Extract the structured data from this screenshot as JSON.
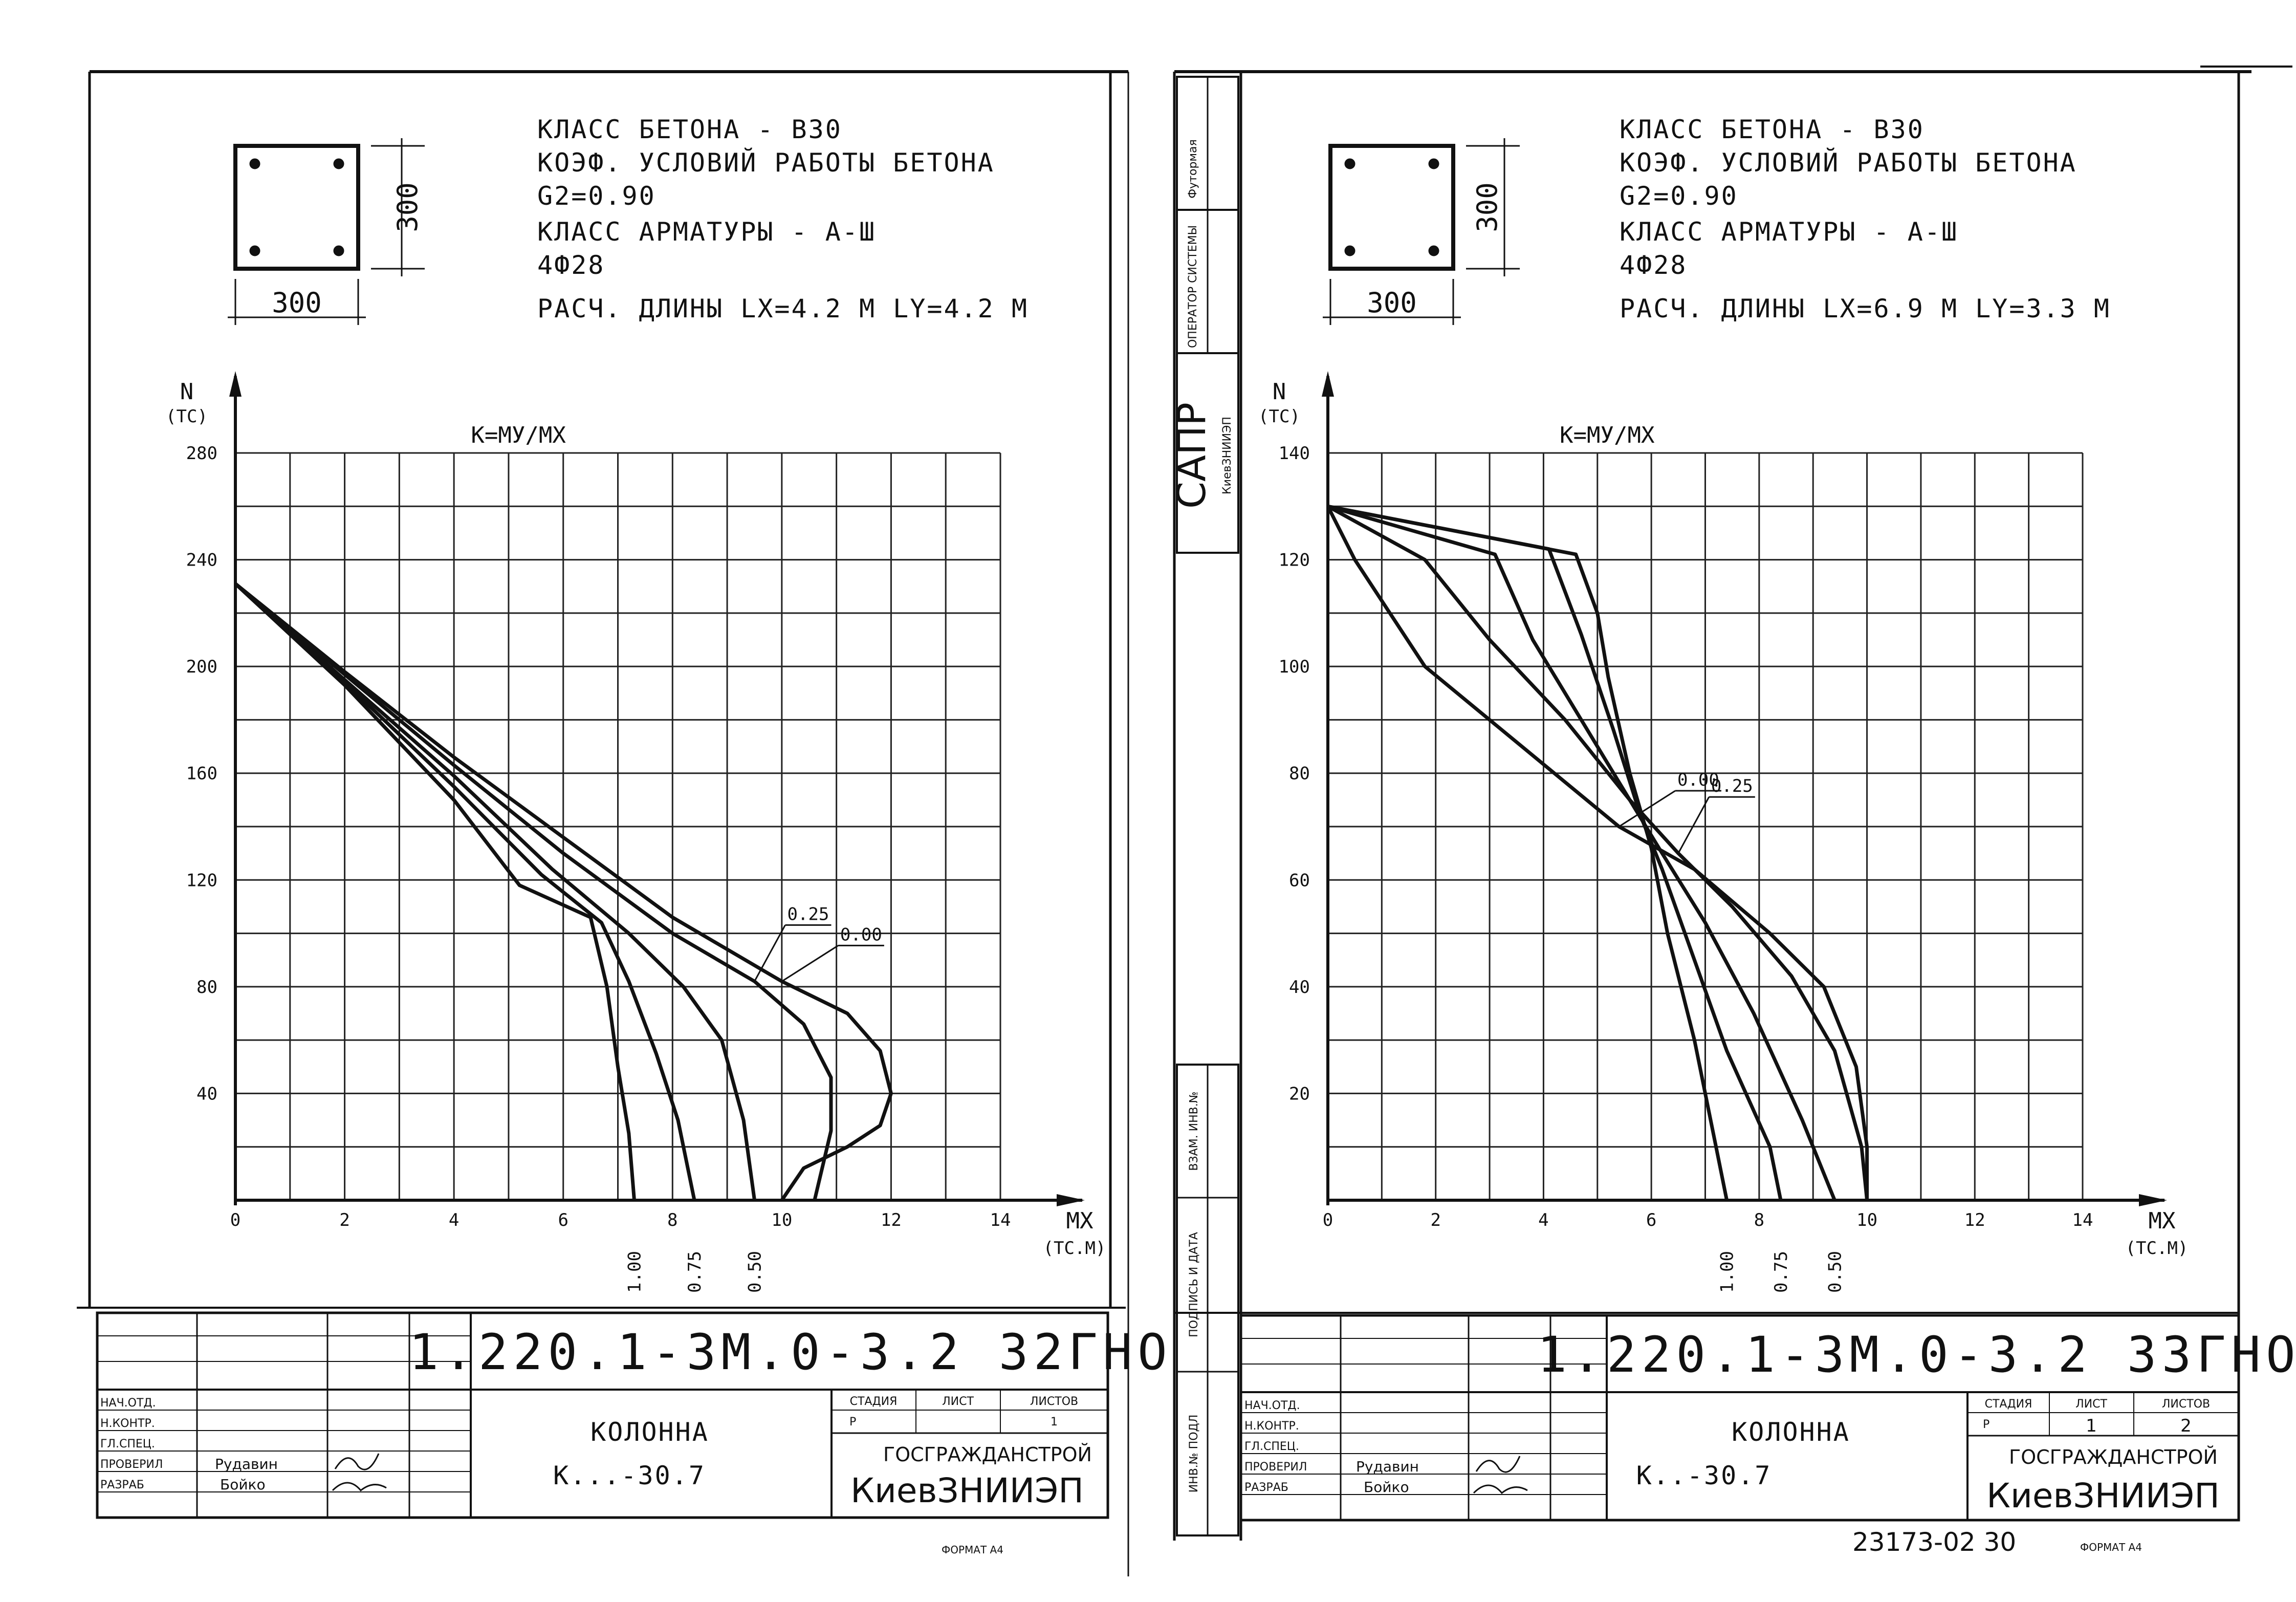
{
  "sheets": [
    {
      "spec": {
        "concrete_class": "КЛАСС БЕТОНА - В30",
        "work_coef_title": "КОЭФ. УСЛОВИЙ РАБОТЫ БЕТОНА",
        "work_coef_value": "G2=0.90",
        "rebar_class": "КЛАСС АРМАТУРЫ - А-Ш",
        "rebar": "4Ф28",
        "design_lengths": "РАСЧ. ДЛИНЫ  LX=4.2 М  LY=4.2 М"
      },
      "section": {
        "width_label": "300",
        "height_label": "300"
      },
      "doc_code": "1.220.1-3М.0-3.2 32ГНО",
      "title_block": {
        "name": "КОЛОННА",
        "mark": "К...-30.7",
        "stage_header": "СТАДИЯ",
        "sheet_header": "ЛИСТ",
        "sheets_header": "ЛИСТОВ",
        "stage": "Р",
        "sheet": "",
        "sheets": "1",
        "org_line1": "ГОСГРАЖДАНСТРОЙ",
        "org_line2": "КиевЗНИИЭП",
        "roles": [
          "НАЧ.ОТД.",
          "Н.КОНТР.",
          "ГЛ.СПЕЦ.",
          "ПРОВЕРИЛ",
          "РАЗРАБ"
        ],
        "names": [
          "",
          "",
          "",
          "Рудавин",
          "Бойко"
        ]
      },
      "format_label": "ФОРМАТ А4",
      "chart_data": {
        "type": "line",
        "title": "К=МУ/МХ",
        "ylabel": "N\n(ТС)",
        "xlabel": "МХ\n(ТС.М)",
        "xlim": [
          0,
          14
        ],
        "ylim": [
          0,
          280
        ],
        "xticks": [
          {
            "v": 0,
            "label": "0"
          },
          {
            "v": 2,
            "label": "2"
          },
          {
            "v": 4,
            "label": "4"
          },
          {
            "v": 6,
            "label": "6"
          },
          {
            "v": 8,
            "label": "8"
          },
          {
            "v": 10,
            "label": "10"
          },
          {
            "v": 12,
            "label": "12"
          },
          {
            "v": 14,
            "label": "14"
          }
        ],
        "yticks": [
          {
            "v": 40,
            "label": "40"
          },
          {
            "v": 80,
            "label": "80"
          },
          {
            "v": 120,
            "label": "120"
          },
          {
            "v": 160,
            "label": "160"
          },
          {
            "v": 200,
            "label": "200"
          },
          {
            "v": 240,
            "label": "240"
          },
          {
            "v": 280,
            "label": "280"
          }
        ],
        "grid": true,
        "series": [
          {
            "name": "0.00",
            "points": [
              [
                0,
                231
              ],
              [
                2,
                198
              ],
              [
                4,
                166
              ],
              [
                6,
                136
              ],
              [
                8,
                106
              ],
              [
                10,
                82
              ],
              [
                11.2,
                70
              ],
              [
                11.8,
                56
              ],
              [
                12.0,
                40
              ],
              [
                11.8,
                28
              ],
              [
                11.2,
                20
              ],
              [
                10.4,
                12
              ],
              [
                10,
                0
              ]
            ]
          },
          {
            "name": "0.25",
            "points": [
              [
                0,
                231
              ],
              [
                2,
                197
              ],
              [
                4,
                163
              ],
              [
                6,
                130
              ],
              [
                8,
                100
              ],
              [
                9.5,
                82
              ],
              [
                10.4,
                66
              ],
              [
                10.9,
                46
              ],
              [
                10.9,
                26
              ],
              [
                10.6,
                0
              ]
            ]
          },
          {
            "name": "0.50",
            "points": [
              [
                0,
                231
              ],
              [
                2,
                195
              ],
              [
                4,
                159
              ],
              [
                5.8,
                124
              ],
              [
                7.2,
                100
              ],
              [
                8.2,
                80
              ],
              [
                8.9,
                60
              ],
              [
                9.3,
                30
              ],
              [
                9.5,
                0
              ]
            ]
          },
          {
            "name": "0.75",
            "points": [
              [
                0,
                231
              ],
              [
                2,
                194
              ],
              [
                4,
                155
              ],
              [
                5.6,
                122
              ],
              [
                6.7,
                104
              ],
              [
                7.2,
                82
              ],
              [
                7.7,
                55
              ],
              [
                8.1,
                30
              ],
              [
                8.4,
                0
              ]
            ]
          },
          {
            "name": "1.00",
            "points": [
              [
                0,
                231
              ],
              [
                2,
                193
              ],
              [
                4,
                150
              ],
              [
                5.2,
                118
              ],
              [
                6.5,
                106
              ],
              [
                6.8,
                80
              ],
              [
                7.0,
                50
              ],
              [
                7.2,
                25
              ],
              [
                7.3,
                0
              ]
            ]
          }
        ],
        "callouts": [
          {
            "label": "0.25",
            "series": "0.25"
          },
          {
            "label": "0.00",
            "series": "0.00"
          }
        ],
        "bottom_labels": [
          {
            "label": "1.00",
            "x": 7.3
          },
          {
            "label": "0.75",
            "x": 8.4
          },
          {
            "label": "0.50",
            "x": 9.5
          }
        ]
      }
    },
    {
      "spec": {
        "concrete_class": "КЛАСС БЕТОНА - В30",
        "work_coef_title": "КОЭФ. УСЛОВИЙ РАБОТЫ БЕТОНА",
        "work_coef_value": "G2=0.90",
        "rebar_class": "КЛАСС АРМАТУРЫ - А-Ш",
        "rebar": "4Ф28",
        "design_lengths": "РАСЧ. ДЛИНЫ  LX=6.9 М  LY=3.3 М"
      },
      "section": {
        "width_label": "300",
        "height_label": "300"
      },
      "doc_code": "1.220.1-3М.0-3.2 33ГНО",
      "title_block": {
        "name": "КОЛОННА",
        "mark": "К..-30.7",
        "stage_header": "СТАДИЯ",
        "sheet_header": "ЛИСТ",
        "sheets_header": "ЛИСТОВ",
        "stage": "Р",
        "sheet": "1",
        "sheets": "2",
        "org_line1": "ГОСГРАЖДАНСТРОЙ",
        "org_line2": "КиевЗНИИЭП",
        "roles": [
          "НАЧ.ОТД.",
          "Н.КОНТР.",
          "ГЛ.СПЕЦ.",
          "ПРОВЕРИЛ",
          "РАЗРАБ"
        ],
        "names": [
          "",
          "",
          "",
          "Рудавин",
          "Бойко"
        ]
      },
      "format_label": "ФОРМАТ А4",
      "stamp_number": "23173-02 30",
      "side_stamps": {
        "format": "Футормая",
        "operator": "ОПЕРАТОР СИСТЕМЫ",
        "sapr": "САПР",
        "sapr_org": "КиевЗНИИЭП",
        "inv_mutual": "ВЗАМ. ИНВ.№",
        "sign_date": "ПОДПИСЬ И ДАТА",
        "inv_orig": "ИНВ.№ ПОДЛ"
      },
      "chart_data": {
        "type": "line",
        "title": "К=МУ/МХ",
        "ylabel": "N\n(ТС)",
        "xlabel": "МХ\n(ТС.М)",
        "xlim": [
          0,
          14
        ],
        "ylim": [
          0,
          140
        ],
        "xticks": [
          {
            "v": 0,
            "label": "0"
          },
          {
            "v": 2,
            "label": "2"
          },
          {
            "v": 4,
            "label": "4"
          },
          {
            "v": 6,
            "label": "6"
          },
          {
            "v": 8,
            "label": "8"
          },
          {
            "v": 10,
            "label": "10"
          },
          {
            "v": 12,
            "label": "12"
          },
          {
            "v": 14,
            "label": "14"
          }
        ],
        "yticks": [
          {
            "v": 20,
            "label": "20"
          },
          {
            "v": 40,
            "label": "40"
          },
          {
            "v": 60,
            "label": "60"
          },
          {
            "v": 80,
            "label": "80"
          },
          {
            "v": 100,
            "label": "100"
          },
          {
            "v": 120,
            "label": "120"
          },
          {
            "v": 140,
            "label": "140"
          }
        ],
        "grid": true,
        "series": [
          {
            "name": "0.00",
            "points": [
              [
                0,
                130
              ],
              [
                0.5,
                120
              ],
              [
                1.8,
                100
              ],
              [
                3.6,
                85
              ],
              [
                5.4,
                70
              ],
              [
                6.8,
                62
              ],
              [
                8.2,
                50
              ],
              [
                9.2,
                40
              ],
              [
                9.8,
                25
              ],
              [
                10.0,
                10
              ],
              [
                10.0,
                0
              ]
            ]
          },
          {
            "name": "0.25",
            "points": [
              [
                0,
                130
              ],
              [
                1.8,
                120
              ],
              [
                3.0,
                105
              ],
              [
                4.4,
                90
              ],
              [
                5.6,
                75
              ],
              [
                6.5,
                65
              ],
              [
                7.5,
                55
              ],
              [
                8.6,
                42
              ],
              [
                9.4,
                28
              ],
              [
                9.9,
                10
              ],
              [
                10.0,
                0
              ]
            ]
          },
          {
            "name": "0.50",
            "points": [
              [
                0,
                130
              ],
              [
                3.1,
                121
              ],
              [
                3.8,
                105
              ],
              [
                4.7,
                90
              ],
              [
                5.6,
                75
              ],
              [
                6.2,
                65
              ],
              [
                7.0,
                52
              ],
              [
                7.9,
                35
              ],
              [
                8.8,
                15
              ],
              [
                9.4,
                0
              ]
            ]
          },
          {
            "name": "0.75",
            "points": [
              [
                0,
                130
              ],
              [
                4.1,
                122
              ],
              [
                4.7,
                106
              ],
              [
                5.3,
                88
              ],
              [
                5.8,
                72
              ],
              [
                6.2,
                62
              ],
              [
                6.8,
                45
              ],
              [
                7.4,
                28
              ],
              [
                8.2,
                10
              ],
              [
                8.4,
                0
              ]
            ]
          },
          {
            "name": "1.00",
            "points": [
              [
                0,
                130
              ],
              [
                4.6,
                121
              ],
              [
                5.0,
                110
              ],
              [
                5.2,
                98
              ],
              [
                5.6,
                80
              ],
              [
                6.0,
                66
              ],
              [
                6.3,
                50
              ],
              [
                6.8,
                30
              ],
              [
                7.2,
                10
              ],
              [
                7.4,
                0
              ]
            ]
          }
        ],
        "callouts": [
          {
            "label": "0.25",
            "series": "0.25"
          },
          {
            "label": "0.00",
            "series": "0.00"
          }
        ],
        "bottom_labels": [
          {
            "label": "1.00",
            "x": 7.4
          },
          {
            "label": "0.75",
            "x": 8.4
          },
          {
            "label": "0.50",
            "x": 9.4
          }
        ]
      }
    }
  ]
}
